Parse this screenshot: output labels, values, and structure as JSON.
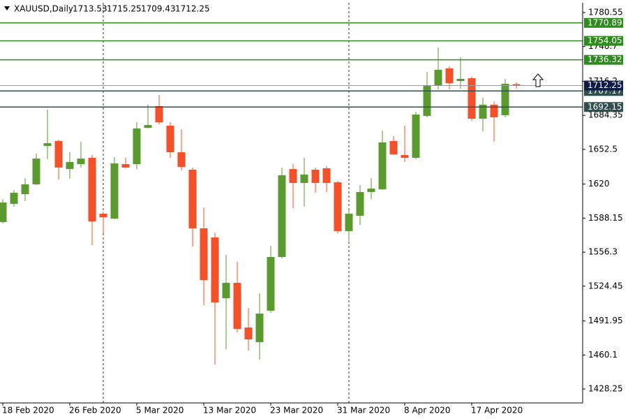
{
  "chart_data": {
    "type": "candlestick",
    "title": "XAUUSD,Daily",
    "categories": [
      "18 Feb 2020",
      null,
      null,
      null,
      null,
      null,
      "26 Feb 2020",
      null,
      null,
      null,
      null,
      null,
      "5 Mar 2020",
      null,
      null,
      null,
      null,
      null,
      "13 Mar 2020",
      null,
      null,
      null,
      null,
      null,
      "23 Mar 2020",
      null,
      null,
      null,
      null,
      null,
      "31 Mar 2020",
      null,
      null,
      null,
      null,
      null,
      "8 Apr 2020",
      null,
      null,
      null,
      null,
      null,
      "17 Apr 2020",
      null,
      null,
      null,
      null
    ],
    "open": [
      1584.5,
      1601.5,
      1610.6,
      1619.8,
      1655.7,
      1660.3,
      1634.1,
      1638.7,
      1644.6,
      1592.3,
      1587.7,
      1638.7,
      1638.7,
      1672.7,
      1693.0,
      1674.7,
      1649.8,
      1633.5,
      1578.6,
      1570.1,
      1513.2,
      1527.6,
      1485.8,
      1472.1,
      1501.5,
      1551.8,
      1634.1,
      1621.1,
      1633.5,
      1634.8,
      1621.7,
      1576.0,
      1590.4,
      1612.6,
      1615.2,
      1660.3,
      1647.2,
      1644.6,
      1683.8,
      1712.6,
      1728.3,
      1716.5,
      1719.1,
      1681.2,
      1694.3,
      1684.5,
      1713.53
    ],
    "high": [
      1606.0,
      1614.5,
      1625.6,
      1648.5,
      1689.7,
      1661.6,
      1649.8,
      1659.6,
      1647.2,
      1594.3,
      1645.3,
      1644.6,
      1677.9,
      1694.3,
      1703.4,
      1677.9,
      1671.4,
      1635.5,
      1598.2,
      1574.7,
      1553.8,
      1547.2,
      1504.1,
      1517.8,
      1562.2,
      1635.5,
      1638.7,
      1644.6,
      1635.5,
      1636.8,
      1623.0,
      1596.2,
      1619.1,
      1625.6,
      1670.1,
      1664.9,
      1674.7,
      1687.7,
      1725.0,
      1747.9,
      1730.2,
      1738.7,
      1720.4,
      1700.8,
      1697.5,
      1718.5,
      1715.25
    ],
    "low": [
      1583.2,
      1598.8,
      1604.1,
      1619.1,
      1643.3,
      1624.3,
      1625.0,
      1635.5,
      1562.9,
      1574.0,
      1587.1,
      1634.8,
      1634.1,
      1672.1,
      1676.0,
      1644.6,
      1632.8,
      1561.6,
      1506.7,
      1451.1,
      1465.5,
      1481.2,
      1464.2,
      1455.7,
      1499.5,
      1550.5,
      1597.5,
      1598.8,
      1611.9,
      1612.6,
      1574.0,
      1566.8,
      1581.9,
      1606.0,
      1614.5,
      1647.2,
      1640.7,
      1643.3,
      1682.5,
      1708.7,
      1708.7,
      1709.3,
      1679.2,
      1669.4,
      1659.6,
      1682.5,
      1709.43
    ],
    "close": [
      1602.8,
      1611.9,
      1619.8,
      1643.9,
      1658.3,
      1635.5,
      1640.7,
      1643.9,
      1585.1,
      1589.0,
      1639.4,
      1635.5,
      1672.1,
      1675.3,
      1677.9,
      1649.8,
      1636.1,
      1578.6,
      1530.2,
      1509.3,
      1527.6,
      1484.5,
      1474.7,
      1498.8,
      1551.8,
      1628.3,
      1621.1,
      1628.9,
      1621.1,
      1621.1,
      1576.0,
      1592.3,
      1612.6,
      1615.8,
      1659.0,
      1647.9,
      1644.6,
      1685.1,
      1712.6,
      1727.0,
      1714.5,
      1718.5,
      1681.2,
      1694.3,
      1682.5,
      1713.9,
      1712.25
    ],
    "up_color": "#5a9a2f",
    "down_color": "#f4512a",
    "ylim": [
      1415.2,
      1789.7
    ],
    "yticks": [
      1428.25,
      1460.1,
      1491.95,
      1524.45,
      1556.3,
      1588.15,
      1620.0,
      1652.5,
      1684.35,
      1716.2,
      1748.7,
      1780.55
    ],
    "levels": [
      {
        "value": 1770.89,
        "color": "#2e8b1e"
      },
      {
        "value": 1754.05,
        "color": "#2e8b1e"
      },
      {
        "value": 1736.32,
        "color": "#2e8b1e"
      },
      {
        "value": 1707.17,
        "color": "#2f4f4f"
      },
      {
        "value": 1692.15,
        "color": "#2f4f4f"
      }
    ],
    "price_color": "#0d1a45"
  }
}
